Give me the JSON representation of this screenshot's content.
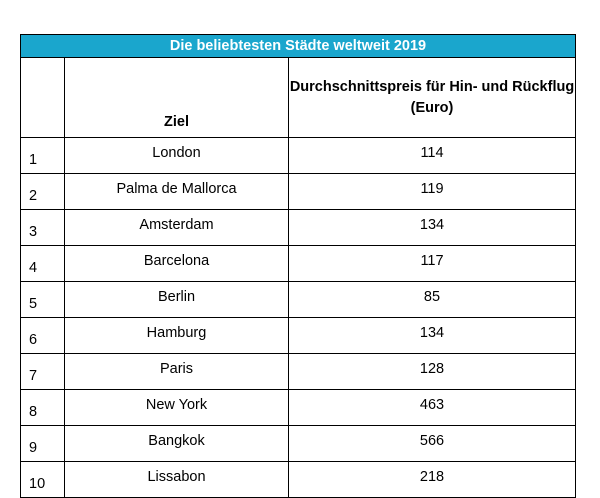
{
  "table": {
    "title": "Die beliebtesten Städte weltweit 2019",
    "headers": {
      "rank": "",
      "destination": "Ziel",
      "price": "Durchschnittspreis für Hin- und Rückflug (Euro)"
    },
    "rows": [
      {
        "rank": "1",
        "destination": "London",
        "price": "114"
      },
      {
        "rank": "2",
        "destination": "Palma de Mallorca",
        "price": "119"
      },
      {
        "rank": "3",
        "destination": "Amsterdam",
        "price": "134"
      },
      {
        "rank": "4",
        "destination": "Barcelona",
        "price": "117"
      },
      {
        "rank": "5",
        "destination": "Berlin",
        "price": "85"
      },
      {
        "rank": "6",
        "destination": "Hamburg",
        "price": "134"
      },
      {
        "rank": "7",
        "destination": "Paris",
        "price": "128"
      },
      {
        "rank": "8",
        "destination": "New York",
        "price": "463"
      },
      {
        "rank": "9",
        "destination": "Bangkok",
        "price": "566"
      },
      {
        "rank": "10",
        "destination": "Lissabon",
        "price": "218"
      }
    ]
  },
  "colors": {
    "title_background": "#1aa6cd",
    "title_text": "#ffffff",
    "border": "#000000"
  }
}
